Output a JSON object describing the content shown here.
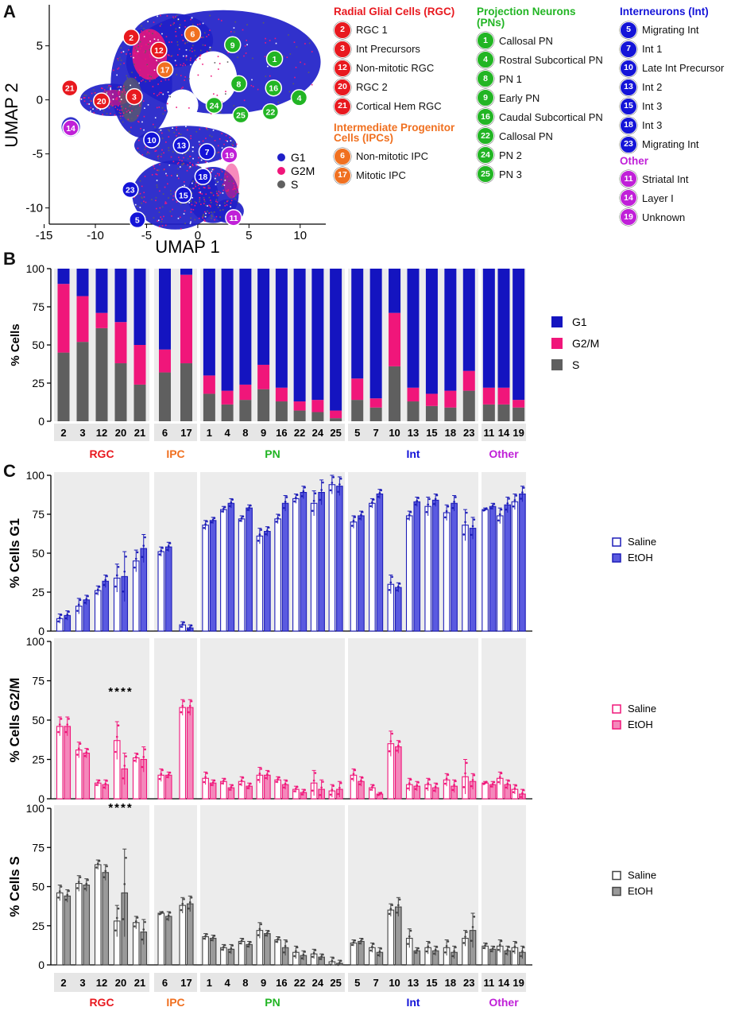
{
  "panels": {
    "A": "A",
    "B": "B",
    "C": "C"
  },
  "colors": {
    "rgc": "#e8191f",
    "ipc": "#f07020",
    "pn": "#22b524",
    "int": "#1414d8",
    "other": "#c020d8",
    "g1": "#1f1fc8",
    "g2m": "#f0167a",
    "s": "#606060"
  },
  "umap": {
    "xlabel": "UMAP 1",
    "ylabel": "UMAP 2",
    "xticks": [
      "-15",
      "-10",
      "-5",
      "0",
      "5",
      "10"
    ],
    "yticks": [
      "5",
      "0",
      "-5",
      "-10"
    ],
    "phase_legend": [
      {
        "label": "G1",
        "color": "#1f1fc8"
      },
      {
        "label": "G2M",
        "color": "#f0167a"
      },
      {
        "label": "S",
        "color": "#606060"
      }
    ],
    "cluster_labels": [
      {
        "id": "2",
        "x": -6.5,
        "y": 5.8,
        "group": "rgc"
      },
      {
        "id": "6",
        "x": -0.5,
        "y": 6.1,
        "group": "ipc"
      },
      {
        "id": "12",
        "x": -3.8,
        "y": 4.6,
        "group": "rgc"
      },
      {
        "id": "9",
        "x": 3.4,
        "y": 5.1,
        "group": "pn"
      },
      {
        "id": "1",
        "x": 7.5,
        "y": 3.8,
        "group": "pn"
      },
      {
        "id": "17",
        "x": -3.2,
        "y": 2.8,
        "group": "ipc"
      },
      {
        "id": "8",
        "x": 4.0,
        "y": 1.5,
        "group": "pn"
      },
      {
        "id": "16",
        "x": 7.4,
        "y": 1.1,
        "group": "pn"
      },
      {
        "id": "4",
        "x": 9.9,
        "y": 0.2,
        "group": "pn"
      },
      {
        "id": "21",
        "x": -12.5,
        "y": 1.1,
        "group": "rgc"
      },
      {
        "id": "20",
        "x": -9.4,
        "y": -0.1,
        "group": "rgc"
      },
      {
        "id": "3",
        "x": -6.2,
        "y": 0.3,
        "group": "rgc"
      },
      {
        "id": "24",
        "x": 1.6,
        "y": -0.5,
        "group": "pn"
      },
      {
        "id": "25",
        "x": 4.2,
        "y": -1.4,
        "group": "pn"
      },
      {
        "id": "22",
        "x": 7.1,
        "y": -1.1,
        "group": "pn"
      },
      {
        "id": "14",
        "x": -12.4,
        "y": -2.6,
        "group": "other"
      },
      {
        "id": "10",
        "x": -4.5,
        "y": -3.7,
        "group": "int"
      },
      {
        "id": "13",
        "x": -1.6,
        "y": -4.2,
        "group": "int"
      },
      {
        "id": "7",
        "x": 0.9,
        "y": -4.8,
        "group": "int"
      },
      {
        "id": "19",
        "x": 3.1,
        "y": -5.1,
        "group": "other"
      },
      {
        "id": "18",
        "x": 0.5,
        "y": -7.1,
        "group": "int"
      },
      {
        "id": "23",
        "x": -6.6,
        "y": -8.3,
        "group": "int"
      },
      {
        "id": "15",
        "x": -1.4,
        "y": -8.8,
        "group": "int"
      },
      {
        "id": "5",
        "x": -5.9,
        "y": -11.1,
        "group": "int"
      },
      {
        "id": "11",
        "x": 3.5,
        "y": -10.9,
        "group": "other"
      }
    ]
  },
  "legend": {
    "rgc": {
      "title": "Radial Glial Cells (RGC)",
      "items": [
        {
          "id": "2",
          "label": "RGC 1"
        },
        {
          "id": "3",
          "label": "Int Precursors"
        },
        {
          "id": "12",
          "label": "Non-mitotic RGC"
        },
        {
          "id": "20",
          "label": "RGC 2"
        },
        {
          "id": "21",
          "label": "Cortical Hem RGC"
        }
      ]
    },
    "ipc": {
      "title1": "Intermediate Progenitor",
      "title2": "Cells (IPCs)",
      "items": [
        {
          "id": "6",
          "label": "Non-mitotic IPC"
        },
        {
          "id": "17",
          "label": "Mitotic IPC"
        }
      ]
    },
    "pn": {
      "title1": "Projection Neurons",
      "title2": "(PNs)",
      "items": [
        {
          "id": "1",
          "label": "Callosal PN"
        },
        {
          "id": "4",
          "label": "Rostral Subcortical PN"
        },
        {
          "id": "8",
          "label": "PN 1"
        },
        {
          "id": "9",
          "label": "Early PN"
        },
        {
          "id": "16",
          "label": "Caudal Subcortical PN"
        },
        {
          "id": "22",
          "label": "Callosal PN"
        },
        {
          "id": "24",
          "label": "PN 2"
        },
        {
          "id": "25",
          "label": "PN 3"
        }
      ]
    },
    "int": {
      "title": "Interneurons (Int)",
      "items": [
        {
          "id": "5",
          "label": "Migrating Int"
        },
        {
          "id": "7",
          "label": "Int 1"
        },
        {
          "id": "10",
          "label": "Late Int Precursor"
        },
        {
          "id": "13",
          "label": "Int 2"
        },
        {
          "id": "15",
          "label": "Int 3"
        },
        {
          "id": "18",
          "label": "Int 3"
        },
        {
          "id": "23",
          "label": "Migrating Int"
        }
      ]
    },
    "other": {
      "title": "Other",
      "items": [
        {
          "id": "11",
          "label": "Striatal Int"
        },
        {
          "id": "14",
          "label": "Layer I"
        },
        {
          "id": "19",
          "label": "Unknown"
        }
      ]
    }
  },
  "chart_data": [
    {
      "type": "bar",
      "title": "",
      "ylabel": "% Cells",
      "ylim": [
        0,
        100
      ],
      "yticks": [
        "0",
        "25",
        "50",
        "75",
        "100"
      ],
      "stacked": true,
      "legend": [
        "G1",
        "G2/M",
        "S"
      ],
      "groups": [
        {
          "name": "RGC",
          "color": "#e8191f",
          "categories": [
            "2",
            "3",
            "12",
            "20",
            "21"
          ]
        },
        {
          "name": "IPC",
          "color": "#f07020",
          "categories": [
            "6",
            "17"
          ]
        },
        {
          "name": "PN",
          "color": "#22b524",
          "categories": [
            "1",
            "4",
            "8",
            "9",
            "16",
            "22",
            "24",
            "25"
          ]
        },
        {
          "name": "Int",
          "color": "#1414d8",
          "categories": [
            "5",
            "7",
            "10",
            "13",
            "15",
            "18",
            "23"
          ]
        },
        {
          "name": "Other",
          "color": "#c020d8",
          "categories": [
            "11",
            "14",
            "19"
          ]
        }
      ],
      "series": [
        {
          "name": "S",
          "values": [
            45,
            52,
            61,
            38,
            24,
            32,
            38,
            18,
            11,
            14,
            21,
            13,
            7,
            6,
            2,
            14,
            9,
            36,
            13,
            10,
            9,
            20,
            11,
            11,
            9
          ]
        },
        {
          "name": "G2/M",
          "values": [
            45,
            30,
            10,
            27,
            26,
            15,
            58,
            12,
            9,
            10,
            16,
            9,
            6,
            8,
            5,
            14,
            6,
            35,
            9,
            8,
            11,
            13,
            11,
            11,
            5
          ]
        },
        {
          "name": "G1",
          "values": [
            10,
            18,
            29,
            35,
            50,
            53,
            4,
            70,
            80,
            76,
            63,
            78,
            87,
            86,
            93,
            72,
            85,
            29,
            78,
            82,
            80,
            67,
            78,
            78,
            86
          ]
        }
      ]
    },
    {
      "type": "bar",
      "ylabel": "% Cells G1",
      "ylim": [
        0,
        100
      ],
      "yticks": [
        "0",
        "25",
        "50",
        "75",
        "100"
      ],
      "legend": [
        "Saline",
        "EtOH"
      ],
      "categories": [
        "2",
        "3",
        "12",
        "20",
        "21",
        "6",
        "17",
        "1",
        "4",
        "8",
        "9",
        "16",
        "22",
        "24",
        "25",
        "5",
        "7",
        "10",
        "13",
        "15",
        "18",
        "23",
        "11",
        "14",
        "19"
      ],
      "series": [
        {
          "name": "Saline",
          "values": [
            8,
            16,
            26,
            34,
            45,
            51,
            4,
            68,
            78,
            72,
            61,
            72,
            85,
            82,
            94,
            70,
            82,
            30,
            74,
            80,
            76,
            68,
            78,
            74,
            83
          ]
        },
        {
          "name": "EtOH",
          "values": [
            10,
            20,
            32,
            35,
            53,
            54,
            2,
            71,
            82,
            79,
            64,
            82,
            89,
            89,
            93,
            74,
            88,
            28,
            83,
            84,
            82,
            66,
            80,
            81,
            88
          ]
        }
      ],
      "error": [
        {
          "name": "Saline",
          "values": [
            3,
            5,
            3,
            9,
            7,
            3,
            2,
            3,
            2,
            2,
            5,
            3,
            3,
            8,
            6,
            4,
            3,
            6,
            3,
            6,
            5,
            10,
            1,
            5,
            5
          ]
        },
        {
          "name": "EtOH",
          "values": [
            3,
            3,
            4,
            16,
            9,
            3,
            2,
            2,
            3,
            2,
            3,
            5,
            4,
            8,
            6,
            3,
            3,
            3,
            3,
            4,
            5,
            7,
            2,
            5,
            5
          ]
        }
      ],
      "annotation": ""
    },
    {
      "type": "bar",
      "ylabel": "% Cells G2/M",
      "ylim": [
        0,
        100
      ],
      "yticks": [
        "0",
        "25",
        "50",
        "75",
        "100"
      ],
      "legend": [
        "Saline",
        "EtOH"
      ],
      "categories": [
        "2",
        "3",
        "12",
        "20",
        "21",
        "6",
        "17",
        "1",
        "4",
        "8",
        "9",
        "16",
        "22",
        "24",
        "25",
        "5",
        "7",
        "10",
        "13",
        "15",
        "18",
        "23",
        "11",
        "14",
        "19"
      ],
      "series": [
        {
          "name": "Saline",
          "values": [
            46,
            31,
            10,
            37,
            26,
            15,
            58,
            13,
            11,
            11,
            15,
            12,
            6,
            10,
            5,
            15,
            7,
            35,
            9,
            9,
            12,
            14,
            10,
            13,
            6
          ]
        },
        {
          "name": "EtOH",
          "values": [
            46,
            29,
            9,
            19,
            25,
            15,
            58,
            10,
            7,
            8,
            15,
            9,
            4,
            6,
            6,
            11,
            3,
            33,
            8,
            7,
            8,
            11,
            9,
            9,
            3
          ]
        }
      ],
      "error": [
        {
          "name": "Saline",
          "values": [
            6,
            5,
            2,
            12,
            3,
            4,
            5,
            4,
            2,
            3,
            5,
            2,
            2,
            8,
            4,
            4,
            2,
            8,
            4,
            4,
            4,
            11,
            1,
            4,
            3
          ]
        },
        {
          "name": "EtOH",
          "values": [
            6,
            3,
            3,
            10,
            8,
            2,
            5,
            2,
            2,
            2,
            3,
            3,
            2,
            6,
            5,
            3,
            1,
            4,
            3,
            3,
            4,
            5,
            2,
            3,
            3
          ]
        }
      ],
      "annotation": "****",
      "annotation_category": "20"
    },
    {
      "type": "bar",
      "ylabel": "% Cells S",
      "ylim": [
        0,
        100
      ],
      "yticks": [
        "0",
        "25",
        "50",
        "75",
        "100"
      ],
      "legend": [
        "Saline",
        "EtOH"
      ],
      "xlabel_groups": [
        "RGC",
        "IPC",
        "PN",
        "Int",
        "Other"
      ],
      "categories": [
        "2",
        "3",
        "12",
        "20",
        "21",
        "6",
        "17",
        "1",
        "4",
        "8",
        "9",
        "16",
        "22",
        "24",
        "25",
        "5",
        "7",
        "10",
        "13",
        "15",
        "18",
        "23",
        "11",
        "14",
        "19"
      ],
      "series": [
        {
          "name": "Saline",
          "values": [
            46,
            52,
            64,
            28,
            27,
            33,
            38,
            18,
            11,
            15,
            22,
            16,
            8,
            7,
            2,
            14,
            11,
            35,
            17,
            11,
            11,
            17,
            12,
            12,
            11
          ]
        },
        {
          "name": "EtOH",
          "values": [
            44,
            51,
            59,
            46,
            21,
            31,
            39,
            17,
            10,
            13,
            20,
            11,
            6,
            5,
            1,
            15,
            8,
            37,
            9,
            9,
            8,
            22,
            10,
            9,
            8
          ]
        }
      ],
      "error": [
        {
          "name": "Saline",
          "values": [
            5,
            5,
            3,
            10,
            4,
            1,
            5,
            2,
            2,
            2,
            5,
            2,
            4,
            3,
            3,
            2,
            3,
            4,
            6,
            4,
            5,
            5,
            2,
            4,
            4
          ]
        },
        {
          "name": "EtOH",
          "values": [
            4,
            4,
            5,
            28,
            8,
            3,
            5,
            2,
            3,
            2,
            2,
            5,
            3,
            2,
            2,
            2,
            3,
            6,
            2,
            3,
            4,
            11,
            2,
            3,
            4
          ]
        }
      ],
      "annotation": "****",
      "annotation_category": "20"
    }
  ]
}
